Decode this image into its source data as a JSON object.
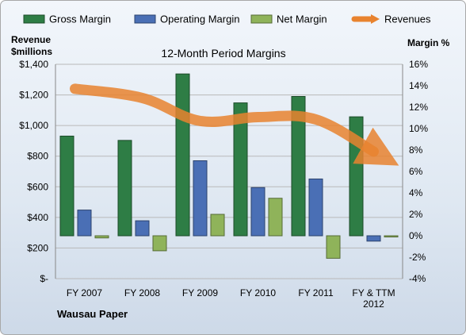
{
  "chart_data": {
    "type": "bar",
    "title": "12-Month Period Margins",
    "left_axis_label_line1": "Revenue",
    "left_axis_label_line2": "$millions",
    "right_axis_label": "Margin %",
    "footer": "Wausau Paper",
    "categories": [
      [
        "FY 2007"
      ],
      [
        "FY 2008"
      ],
      [
        "FY 2009"
      ],
      [
        "FY 2010"
      ],
      [
        "FY 2011"
      ],
      [
        "FY & TTM",
        "2012"
      ]
    ],
    "left_axis": {
      "min": 0,
      "max": 1400,
      "step": 200,
      "tick_labels": [
        "$-",
        "$200",
        "$400",
        "$600",
        "$800",
        "$1,000",
        "$1,200",
        "$1,400"
      ]
    },
    "right_axis": {
      "min": -4,
      "max": 16,
      "step": 2,
      "tick_labels": [
        "-4%",
        "-2%",
        "0%",
        "2%",
        "4%",
        "6%",
        "8%",
        "10%",
        "12%",
        "14%",
        "16%"
      ]
    },
    "series": [
      {
        "name": "Gross Margin",
        "axis": "right",
        "color": "#2e7d45",
        "values": [
          9.3,
          8.9,
          15.1,
          12.4,
          13.0,
          11.1
        ]
      },
      {
        "name": "Operating Margin",
        "axis": "right",
        "color": "#4a6fb5",
        "values": [
          2.4,
          1.4,
          7.0,
          4.5,
          5.3,
          -0.5
        ]
      },
      {
        "name": "Net Margin",
        "axis": "right",
        "color": "#8fb35a",
        "values": [
          -0.2,
          -1.4,
          2.0,
          3.5,
          -2.1,
          -0.1
        ]
      },
      {
        "name": "Revenues",
        "axis": "left",
        "color": "#e8832f",
        "values": [
          1240,
          1180,
          1030,
          1055,
          1040,
          830
        ]
      }
    ],
    "legend_position": "top",
    "grid": true
  }
}
